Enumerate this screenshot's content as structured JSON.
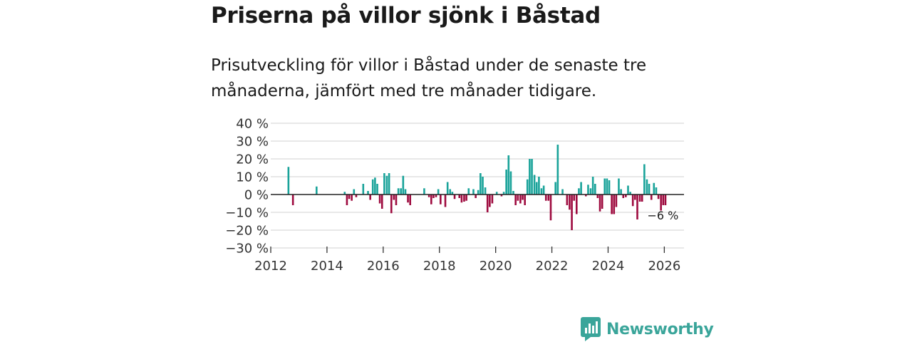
{
  "header": {
    "title": "Priserna på villor sjönk i Båstad",
    "subtitle": "Prisutveckling för villor i Båstad under de senaste tre månaderna, jämfört med tre månader tidigare."
  },
  "brand": {
    "name": "Newsworthy"
  },
  "colors": {
    "positive": "#1aa39a",
    "negative": "#9e0b3f",
    "grid": "#d9d9d9",
    "zero": "#222222",
    "brand": "#3aa59a"
  },
  "chart_data": {
    "type": "bar",
    "title": "Priserna på villor sjönk i Båstad",
    "xlabel": "",
    "ylabel": "",
    "xlim": [
      2012,
      2026.7
    ],
    "ylim": [
      -30,
      40
    ],
    "grid": true,
    "x_ticks": [
      {
        "value": 2012,
        "label": "2012"
      },
      {
        "value": 2014,
        "label": "2014"
      },
      {
        "value": 2016,
        "label": "2016"
      },
      {
        "value": 2018,
        "label": "2018"
      },
      {
        "value": 2020,
        "label": "2020"
      },
      {
        "value": 2022,
        "label": "2022"
      },
      {
        "value": 2024,
        "label": "2024"
      },
      {
        "value": 2026,
        "label": "2026"
      }
    ],
    "y_ticks": [
      {
        "value": 40,
        "label": "40 %"
      },
      {
        "value": 30,
        "label": "30 %"
      },
      {
        "value": 20,
        "label": "20 %"
      },
      {
        "value": 10,
        "label": "10 %"
      },
      {
        "value": 0,
        "label": "0 %"
      },
      {
        "value": -10,
        "label": "−10 %"
      },
      {
        "value": -20,
        "label": "−20 %"
      },
      {
        "value": -30,
        "label": "−30 %"
      }
    ],
    "annotation": {
      "x": 2026.0,
      "y": -6,
      "label": "−6 %"
    },
    "series": [
      {
        "name": "Prisutveckling",
        "points": [
          [
            2012.63,
            15.5
          ],
          [
            2012.79,
            -6
          ],
          [
            2013.63,
            4.5
          ],
          [
            2014.63,
            1.5
          ],
          [
            2014.71,
            -6
          ],
          [
            2014.79,
            -2.5
          ],
          [
            2014.88,
            -3.5
          ],
          [
            2014.96,
            3
          ],
          [
            2015.04,
            -1.5
          ],
          [
            2015.29,
            6
          ],
          [
            2015.46,
            2
          ],
          [
            2015.54,
            -3
          ],
          [
            2015.63,
            8.5
          ],
          [
            2015.71,
            9.5
          ],
          [
            2015.79,
            6
          ],
          [
            2015.88,
            -5
          ],
          [
            2015.96,
            -8
          ],
          [
            2016.04,
            12
          ],
          [
            2016.13,
            10.5
          ],
          [
            2016.21,
            12
          ],
          [
            2016.29,
            -10.5
          ],
          [
            2016.38,
            -3
          ],
          [
            2016.46,
            -6
          ],
          [
            2016.54,
            3.5
          ],
          [
            2016.63,
            3.5
          ],
          [
            2016.71,
            10.5
          ],
          [
            2016.79,
            3
          ],
          [
            2016.88,
            -4.5
          ],
          [
            2016.96,
            -6
          ],
          [
            2017.46,
            3.5
          ],
          [
            2017.63,
            -1.5
          ],
          [
            2017.71,
            -5.5
          ],
          [
            2017.79,
            -2
          ],
          [
            2017.88,
            -1.5
          ],
          [
            2017.96,
            3
          ],
          [
            2018.04,
            -5.5
          ],
          [
            2018.21,
            -7
          ],
          [
            2018.29,
            7
          ],
          [
            2018.38,
            3
          ],
          [
            2018.46,
            1.5
          ],
          [
            2018.54,
            -2.5
          ],
          [
            2018.71,
            -2
          ],
          [
            2018.79,
            -4.5
          ],
          [
            2018.88,
            -4
          ],
          [
            2018.96,
            -3.5
          ],
          [
            2019.04,
            3.5
          ],
          [
            2019.21,
            3
          ],
          [
            2019.29,
            -2
          ],
          [
            2019.38,
            2.5
          ],
          [
            2019.46,
            12
          ],
          [
            2019.54,
            10
          ],
          [
            2019.63,
            4
          ],
          [
            2019.71,
            -10
          ],
          [
            2019.79,
            -7
          ],
          [
            2019.88,
            -5
          ],
          [
            2020.04,
            1.5
          ],
          [
            2020.21,
            -1
          ],
          [
            2020.29,
            1.5
          ],
          [
            2020.38,
            14
          ],
          [
            2020.46,
            22
          ],
          [
            2020.54,
            13
          ],
          [
            2020.63,
            2
          ],
          [
            2020.71,
            -6
          ],
          [
            2020.79,
            -3.5
          ],
          [
            2020.88,
            -5
          ],
          [
            2020.96,
            -3
          ],
          [
            2021.04,
            -6
          ],
          [
            2021.13,
            8.5
          ],
          [
            2021.21,
            20
          ],
          [
            2021.29,
            20
          ],
          [
            2021.38,
            11
          ],
          [
            2021.46,
            7
          ],
          [
            2021.54,
            10
          ],
          [
            2021.63,
            3.5
          ],
          [
            2021.71,
            5
          ],
          [
            2021.79,
            -3.5
          ],
          [
            2021.88,
            -3.5
          ],
          [
            2021.96,
            -14.5
          ],
          [
            2022.13,
            7
          ],
          [
            2022.21,
            28
          ],
          [
            2022.38,
            3
          ],
          [
            2022.54,
            -6
          ],
          [
            2022.63,
            -8.5
          ],
          [
            2022.71,
            -20
          ],
          [
            2022.79,
            -3.5
          ],
          [
            2022.88,
            -11
          ],
          [
            2022.96,
            3.5
          ],
          [
            2023.04,
            7
          ],
          [
            2023.21,
            -1
          ],
          [
            2023.29,
            5.5
          ],
          [
            2023.38,
            3.5
          ],
          [
            2023.46,
            10
          ],
          [
            2023.54,
            6
          ],
          [
            2023.63,
            -2
          ],
          [
            2023.71,
            -9.5
          ],
          [
            2023.79,
            -8
          ],
          [
            2023.88,
            9
          ],
          [
            2023.96,
            9
          ],
          [
            2024.04,
            8
          ],
          [
            2024.13,
            -11
          ],
          [
            2024.21,
            -11
          ],
          [
            2024.29,
            -7
          ],
          [
            2024.38,
            9
          ],
          [
            2024.46,
            3
          ],
          [
            2024.54,
            -2
          ],
          [
            2024.63,
            -1.5
          ],
          [
            2024.71,
            5
          ],
          [
            2024.79,
            1.5
          ],
          [
            2024.88,
            -6.5
          ],
          [
            2024.96,
            -3
          ],
          [
            2025.04,
            -14
          ],
          [
            2025.13,
            -4
          ],
          [
            2025.21,
            -4
          ],
          [
            2025.29,
            17
          ],
          [
            2025.38,
            8.5
          ],
          [
            2025.46,
            6
          ],
          [
            2025.54,
            -3
          ],
          [
            2025.63,
            6.5
          ],
          [
            2025.71,
            4
          ],
          [
            2025.79,
            -2.5
          ],
          [
            2025.88,
            -9
          ],
          [
            2025.96,
            -6
          ],
          [
            2026.04,
            -6
          ]
        ]
      }
    ]
  }
}
